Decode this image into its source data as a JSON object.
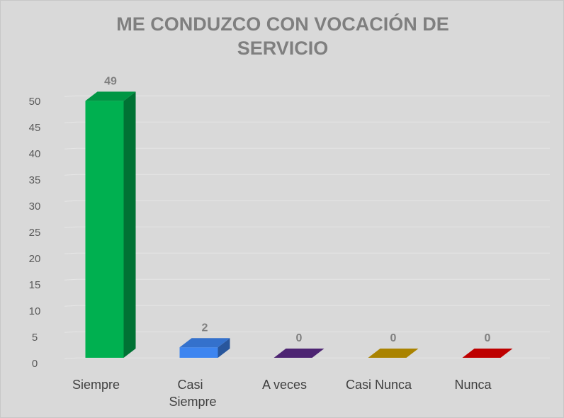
{
  "chart_data": {
    "type": "bar3d",
    "title": "ME CONDUZCO CON VOCACIÓN DE SERVICIO",
    "categories": [
      "Siempre",
      "Casi Siempre",
      "A veces",
      "Casi Nunca",
      "Nunca"
    ],
    "values": [
      49,
      2,
      0,
      0,
      0
    ],
    "colors": [
      "#00b050",
      "#3d85f0",
      "#5b2a86",
      "#c89a00",
      "#e00000"
    ],
    "ylim": [
      0,
      50
    ],
    "yticks": [
      0,
      5,
      10,
      15,
      20,
      25,
      30,
      35,
      40,
      45,
      50
    ],
    "grid": true
  }
}
